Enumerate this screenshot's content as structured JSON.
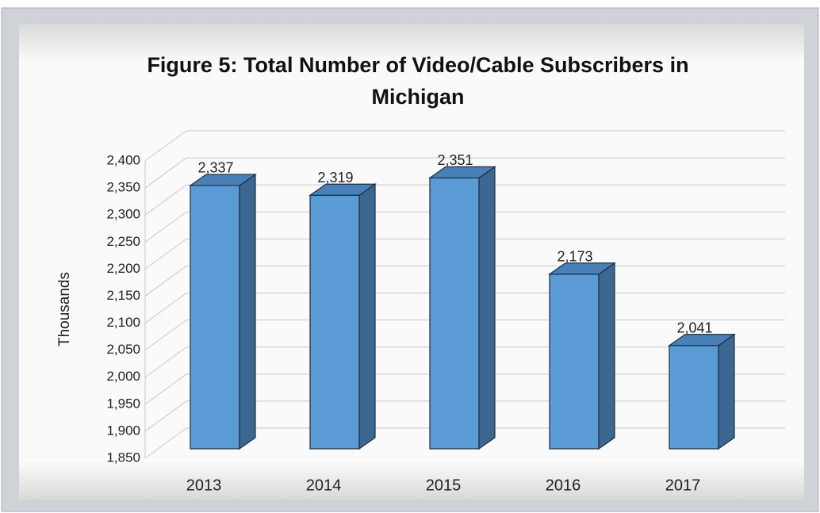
{
  "chart_data": {
    "type": "bar",
    "title": "Figure 5: Total Number of Video/Cable Subscribers in Michigan",
    "y_label": "Thousands",
    "categories": [
      "2013",
      "2014",
      "2015",
      "2016",
      "2017"
    ],
    "values": [
      2337,
      2319,
      2351,
      2173,
      2041
    ],
    "value_labels": [
      "2,337",
      "2,319",
      "2,351",
      "2,173",
      "2,041"
    ],
    "color": "#5b9bd5",
    "ylim": [
      1850,
      2400
    ],
    "yticks": [
      {
        "value": 1850,
        "label": "1,850"
      },
      {
        "value": 1900,
        "label": "1,900"
      },
      {
        "value": 1950,
        "label": "1,950"
      },
      {
        "value": 2000,
        "label": "2,000"
      },
      {
        "value": 2050,
        "label": "2,050"
      },
      {
        "value": 2100,
        "label": "2,100"
      },
      {
        "value": 2150,
        "label": "2,150"
      },
      {
        "value": 2200,
        "label": "2,200"
      },
      {
        "value": 2250,
        "label": "2,250"
      },
      {
        "value": 2300,
        "label": "2,300"
      },
      {
        "value": 2350,
        "label": "2,350"
      },
      {
        "value": 2400,
        "label": "2,400"
      }
    ],
    "grid": true
  }
}
